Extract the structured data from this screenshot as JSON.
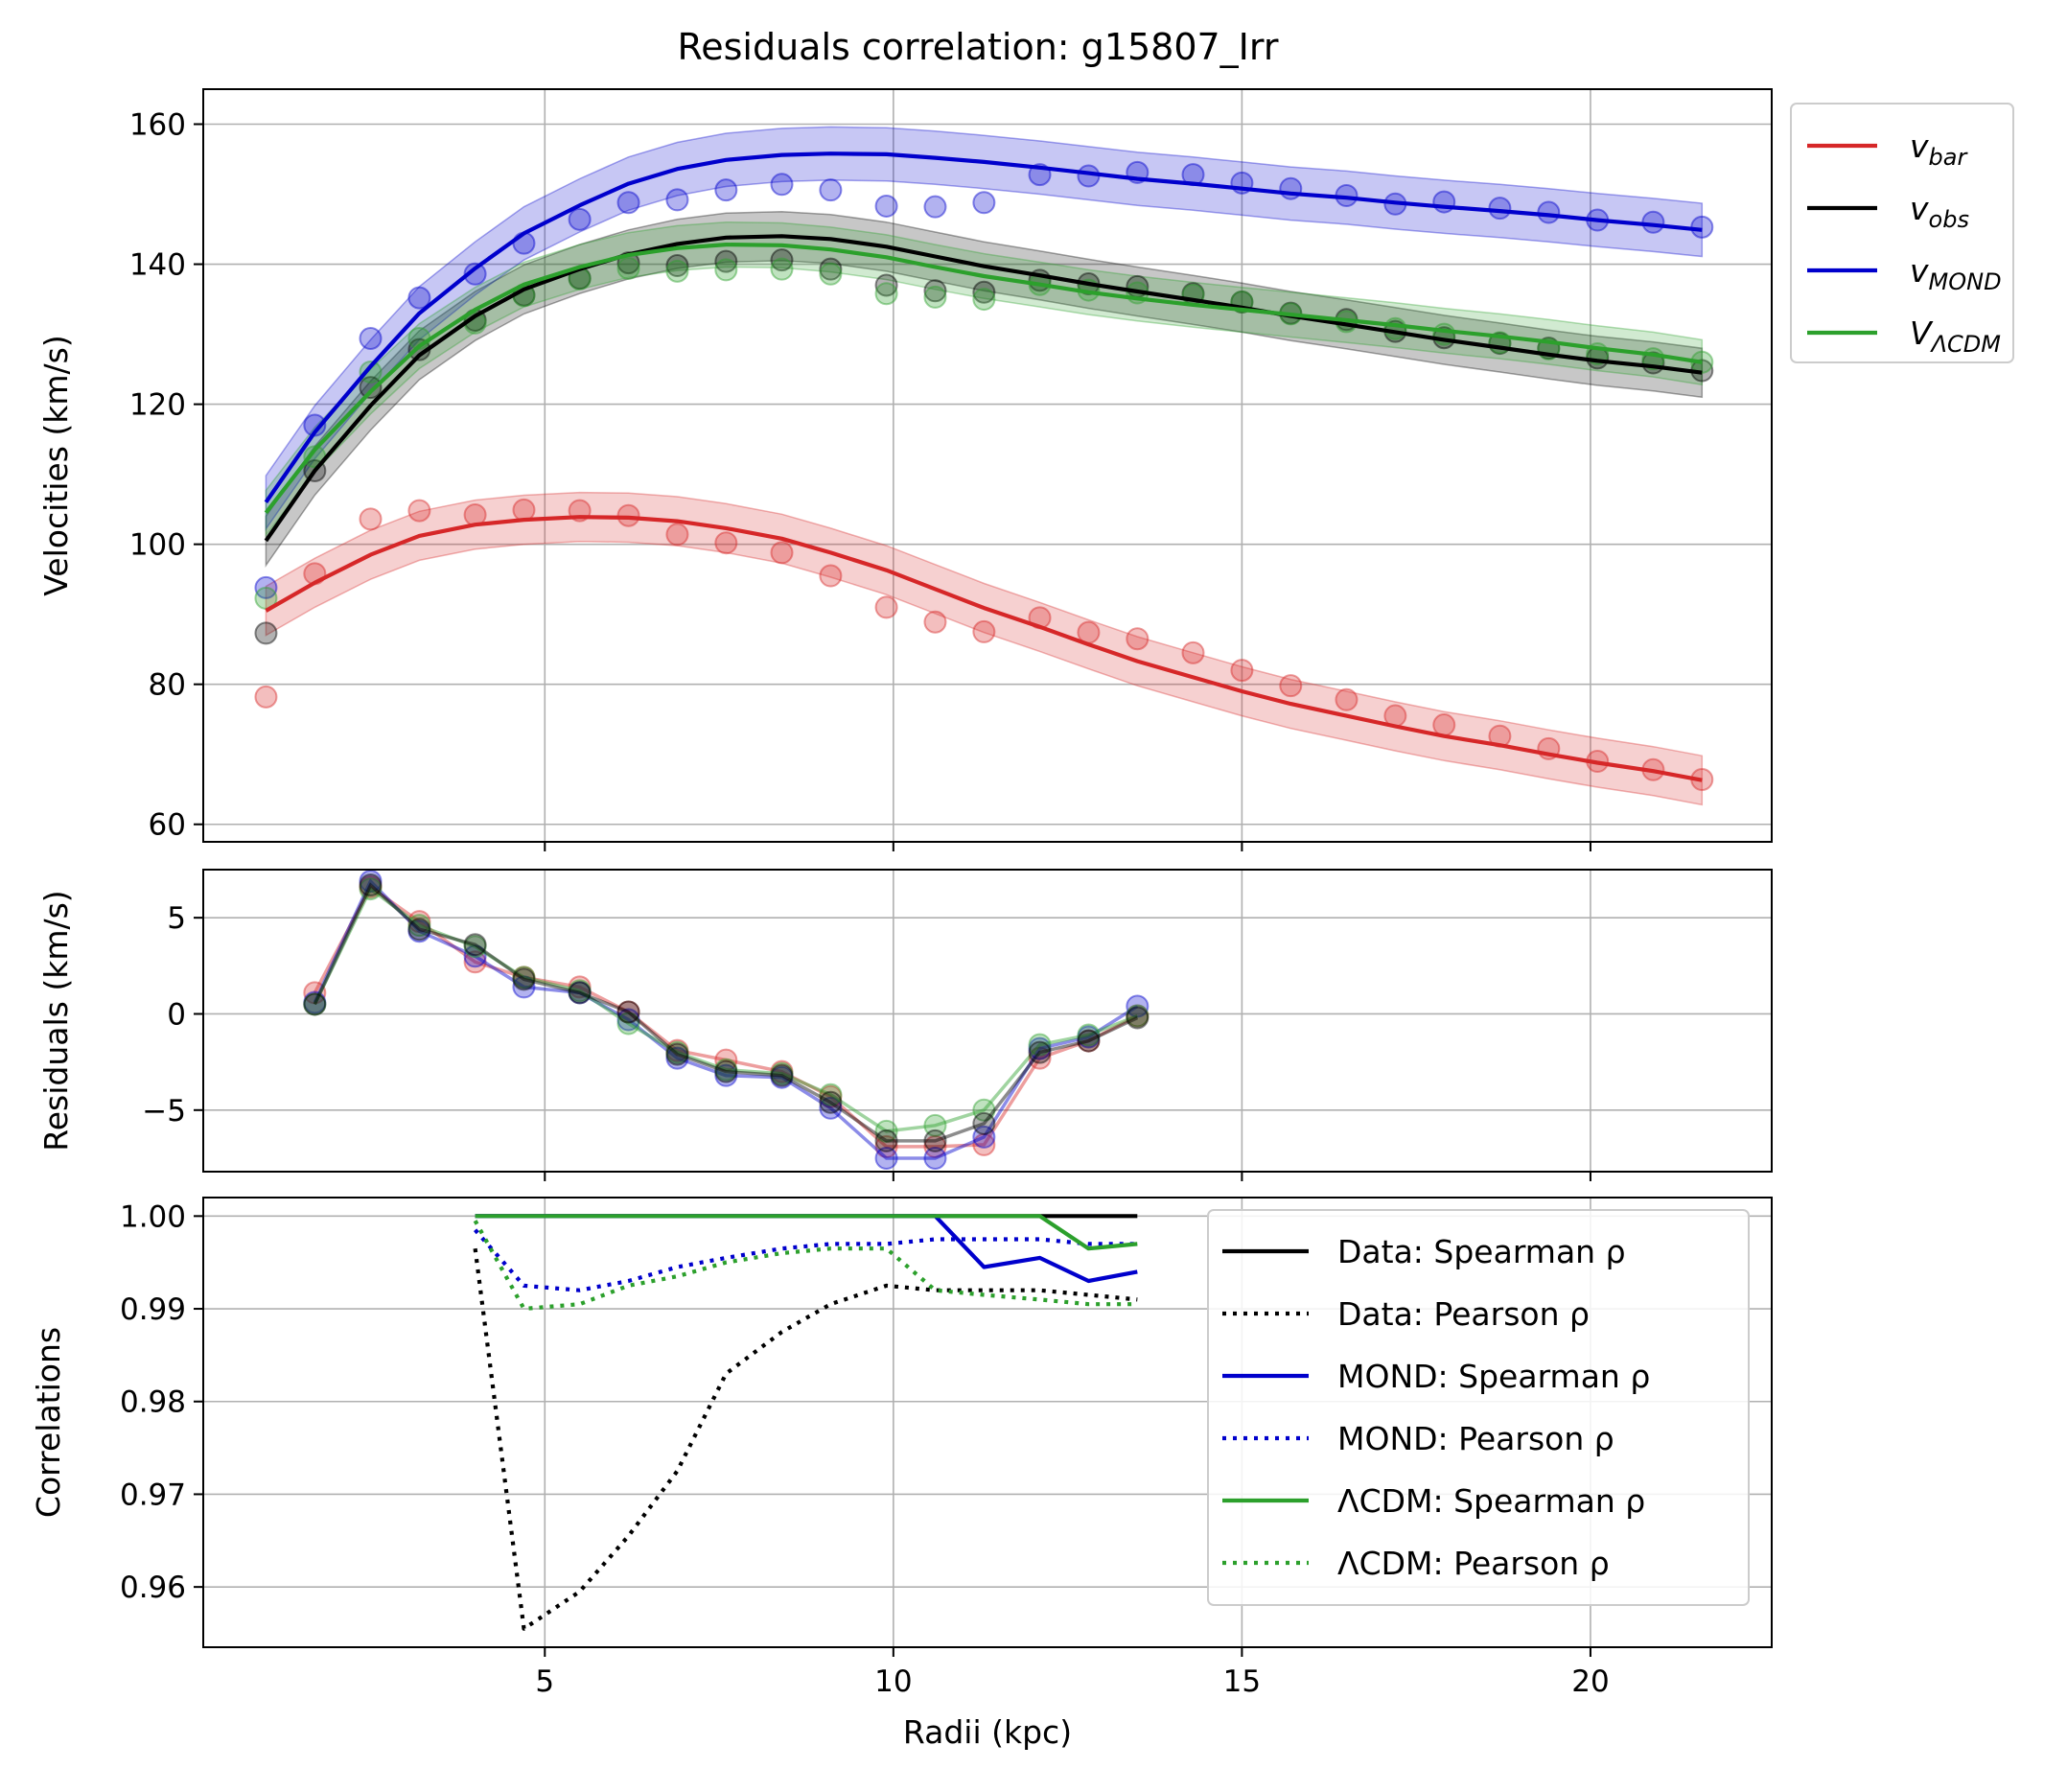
{
  "title": "Residuals correlation: g15807_Irr",
  "chart_data": [
    {
      "panel": "velocities",
      "type": "line",
      "ylabel": "Velocities (km/s)",
      "xlim": [
        0.1,
        22.6
      ],
      "ylim": [
        57.5,
        165
      ],
      "yticks": [
        60,
        80,
        100,
        120,
        140,
        160
      ],
      "xticks": [
        5,
        10,
        15,
        20
      ],
      "grid": true,
      "legend_position": "outside-upper-right",
      "legend": [
        {
          "base": "v",
          "sub": "bar",
          "color": "#d62728"
        },
        {
          "base": "v",
          "sub": "obs",
          "color": "#000000"
        },
        {
          "base": "v",
          "sub": "MOND",
          "color": "#0000cc"
        },
        {
          "base": "V",
          "sub": "ΛCDM",
          "color": "#2ca02c"
        }
      ],
      "curve_x": [
        1.0,
        1.7,
        2.5,
        3.2,
        4.0,
        4.7,
        5.5,
        6.2,
        6.9,
        7.6,
        8.4,
        9.1,
        9.9,
        10.6,
        11.3,
        12.1,
        12.8,
        13.5,
        14.3,
        15.0,
        15.7,
        16.5,
        17.2,
        17.9,
        18.7,
        19.4,
        20.1,
        20.9,
        21.6
      ],
      "series": [
        {
          "key": "vbar",
          "color": "#d62728",
          "band": 3.5,
          "curve": [
            90.5,
            94.5,
            98.5,
            101.2,
            102.8,
            103.5,
            103.9,
            103.8,
            103.3,
            102.3,
            100.8,
            98.8,
            96.3,
            93.6,
            90.9,
            88.2,
            85.7,
            83.3,
            81.0,
            79.0,
            77.2,
            75.5,
            74.0,
            72.6,
            71.3,
            70.0,
            68.8,
            67.6,
            66.3
          ],
          "points": [
            78.2,
            95.8,
            103.6,
            104.8,
            104.2,
            104.9,
            104.8,
            104.1,
            101.4,
            100.2,
            98.8,
            95.5,
            91.0,
            88.9,
            87.5,
            89.5,
            87.4,
            86.5,
            84.5,
            82.0,
            79.8,
            77.8,
            75.5,
            74.2,
            72.6,
            70.8,
            69.0,
            67.8,
            66.4
          ]
        },
        {
          "key": "vobs",
          "color": "#000000",
          "band": 3.5,
          "curve": [
            100.5,
            110.5,
            119.8,
            127.0,
            132.6,
            136.4,
            139.3,
            141.4,
            142.9,
            143.8,
            144.0,
            143.6,
            142.5,
            141.1,
            139.7,
            138.4,
            137.2,
            136.1,
            134.9,
            133.8,
            132.6,
            131.4,
            130.3,
            129.2,
            128.1,
            127.1,
            126.2,
            125.4,
            124.5
          ],
          "points": [
            87.3,
            110.5,
            122.4,
            127.8,
            132.0,
            135.6,
            138.0,
            140.2,
            139.8,
            140.4,
            140.6,
            139.3,
            137.0,
            136.2,
            136.0,
            137.7,
            137.2,
            136.8,
            135.8,
            134.6,
            133.0,
            132.1,
            130.4,
            129.5,
            128.7,
            128.0,
            126.6,
            125.9,
            124.8
          ]
        },
        {
          "key": "vmond",
          "color": "#0000cc",
          "band": 3.8,
          "curve": [
            106.0,
            116.0,
            125.4,
            133.0,
            139.4,
            144.4,
            148.4,
            151.5,
            153.6,
            154.9,
            155.6,
            155.8,
            155.7,
            155.2,
            154.6,
            153.8,
            153.0,
            152.2,
            151.5,
            150.8,
            150.1,
            149.5,
            148.8,
            148.2,
            147.6,
            147.0,
            146.3,
            145.6,
            144.9
          ],
          "points": [
            93.8,
            117.0,
            129.4,
            135.2,
            138.6,
            143.0,
            146.4,
            148.8,
            149.2,
            150.6,
            151.4,
            150.6,
            148.3,
            148.2,
            148.8,
            152.8,
            152.6,
            153.1,
            152.8,
            151.6,
            150.8,
            149.8,
            148.6,
            148.9,
            148.0,
            147.4,
            146.3,
            146.0,
            145.3
          ]
        },
        {
          "key": "vlcdm",
          "color": "#2ca02c",
          "band": 3.2,
          "curve": [
            104.5,
            113.5,
            121.8,
            128.3,
            133.5,
            137.1,
            139.6,
            141.3,
            142.3,
            142.8,
            142.7,
            142.1,
            141.0,
            139.6,
            138.3,
            137.1,
            136.0,
            135.1,
            134.2,
            133.5,
            132.8,
            132.0,
            131.3,
            130.5,
            129.7,
            128.9,
            128.0,
            127.1,
            126.0
          ],
          "points": [
            92.3,
            112.5,
            124.6,
            129.4,
            131.6,
            135.5,
            137.9,
            139.4,
            139.0,
            139.2,
            139.3,
            138.6,
            135.8,
            135.3,
            135.0,
            137.1,
            136.3,
            135.9,
            135.6,
            134.6,
            132.9,
            131.8,
            130.8,
            130.0,
            128.8,
            127.9,
            127.2,
            126.5,
            126.0
          ]
        }
      ]
    },
    {
      "panel": "residuals",
      "type": "line",
      "ylabel": "Residuals (km/s)",
      "xlim": [
        0.1,
        22.6
      ],
      "ylim": [
        -8.2,
        7.5
      ],
      "yticks": [
        -5,
        0,
        5
      ],
      "ytick_labels": [
        "−5",
        "0",
        "5"
      ],
      "xticks": [
        5,
        10,
        15,
        20
      ],
      "grid": true,
      "x": [
        1.7,
        2.5,
        3.2,
        4.0,
        4.7,
        5.5,
        6.2,
        6.9,
        7.6,
        8.4,
        9.1,
        9.9,
        10.6,
        11.3,
        12.1,
        12.8,
        13.5
      ],
      "series": [
        {
          "key": "vbar",
          "color": "#d62728",
          "values": [
            1.1,
            6.6,
            4.8,
            2.7,
            1.9,
            1.4,
            0.1,
            -1.9,
            -2.4,
            -3.0,
            -4.3,
            -6.9,
            -6.9,
            -6.8,
            -2.3,
            -1.4,
            -0.1
          ]
        },
        {
          "key": "vmond",
          "color": "#0000cc",
          "values": [
            0.6,
            6.9,
            4.3,
            3.0,
            1.4,
            1.1,
            -0.3,
            -2.3,
            -3.2,
            -3.3,
            -4.9,
            -7.5,
            -7.5,
            -6.4,
            -1.8,
            -1.2,
            0.4
          ]
        },
        {
          "key": "vlcdm",
          "color": "#2ca02c",
          "values": [
            0.5,
            6.5,
            4.6,
            3.5,
            1.9,
            1.2,
            -0.5,
            -2.0,
            -2.9,
            -3.1,
            -4.2,
            -6.1,
            -5.8,
            -5.0,
            -1.6,
            -1.1,
            -0.1
          ]
        },
        {
          "key": "vobs",
          "color": "#000000",
          "values": [
            0.5,
            6.7,
            4.4,
            3.6,
            1.8,
            1.1,
            0.1,
            -2.1,
            -3.0,
            -3.2,
            -4.6,
            -6.6,
            -6.6,
            -5.7,
            -2.0,
            -1.4,
            -0.2
          ]
        }
      ]
    },
    {
      "panel": "correlations",
      "type": "line",
      "ylabel": "Correlations",
      "xlabel": "Radii (kpc)",
      "xlim": [
        0.1,
        22.6
      ],
      "ylim": [
        0.9535,
        1.002
      ],
      "yticks": [
        0.96,
        0.97,
        0.98,
        0.99,
        1.0
      ],
      "ytick_labels": [
        "0.96",
        "0.97",
        "0.98",
        "0.99",
        "1.00"
      ],
      "xticks": [
        5,
        10,
        15,
        20
      ],
      "xtick_labels": [
        "5",
        "10",
        "15",
        "20"
      ],
      "grid": true,
      "legend_position": "lower-right",
      "series": [
        {
          "name": "Data: Spearman ρ",
          "color": "#000000",
          "dash": "solid",
          "x": [
            4.0,
            13.5
          ],
          "values": [
            1.0,
            1.0
          ]
        },
        {
          "name": "Data: Pearson ρ",
          "color": "#000000",
          "dash": "dotted",
          "x": [
            4.0,
            4.7,
            5.5,
            6.2,
            6.9,
            7.6,
            8.4,
            9.1,
            9.9,
            10.6,
            11.3,
            12.1,
            12.8,
            13.5
          ],
          "values": [
            0.9965,
            0.9555,
            0.9595,
            0.9655,
            0.9725,
            0.983,
            0.9875,
            0.9905,
            0.9925,
            0.992,
            0.992,
            0.992,
            0.9915,
            0.991
          ]
        },
        {
          "name": "MOND: Spearman ρ",
          "color": "#0000cc",
          "dash": "solid",
          "x": [
            4.0,
            10.6,
            11.3,
            12.1,
            12.8,
            13.5
          ],
          "values": [
            1.0,
            1.0,
            0.9945,
            0.9955,
            0.993,
            0.994
          ]
        },
        {
          "name": "MOND: Pearson ρ",
          "color": "#0000cc",
          "dash": "dotted",
          "x": [
            4.0,
            4.7,
            5.5,
            6.2,
            6.9,
            7.6,
            8.4,
            9.1,
            9.9,
            10.6,
            11.3,
            12.1,
            12.8,
            13.5
          ],
          "values": [
            0.9985,
            0.9925,
            0.992,
            0.993,
            0.9945,
            0.9955,
            0.9965,
            0.997,
            0.997,
            0.9975,
            0.9975,
            0.9975,
            0.997,
            0.997
          ]
        },
        {
          "name": "ΛCDM: Spearman ρ",
          "color": "#2ca02c",
          "dash": "solid",
          "x": [
            4.0,
            12.1,
            12.8,
            13.5
          ],
          "values": [
            1.0,
            1.0,
            0.9965,
            0.997
          ]
        },
        {
          "name": "ΛCDM: Pearson ρ",
          "color": "#2ca02c",
          "dash": "dotted",
          "x": [
            4.0,
            4.7,
            5.5,
            6.2,
            6.9,
            7.6,
            8.4,
            9.1,
            9.9,
            10.6,
            11.3,
            12.1,
            12.8,
            13.5
          ],
          "values": [
            0.9995,
            0.99,
            0.9905,
            0.9925,
            0.9935,
            0.995,
            0.996,
            0.9965,
            0.9965,
            0.992,
            0.9915,
            0.991,
            0.9905,
            0.9905
          ]
        }
      ]
    }
  ]
}
